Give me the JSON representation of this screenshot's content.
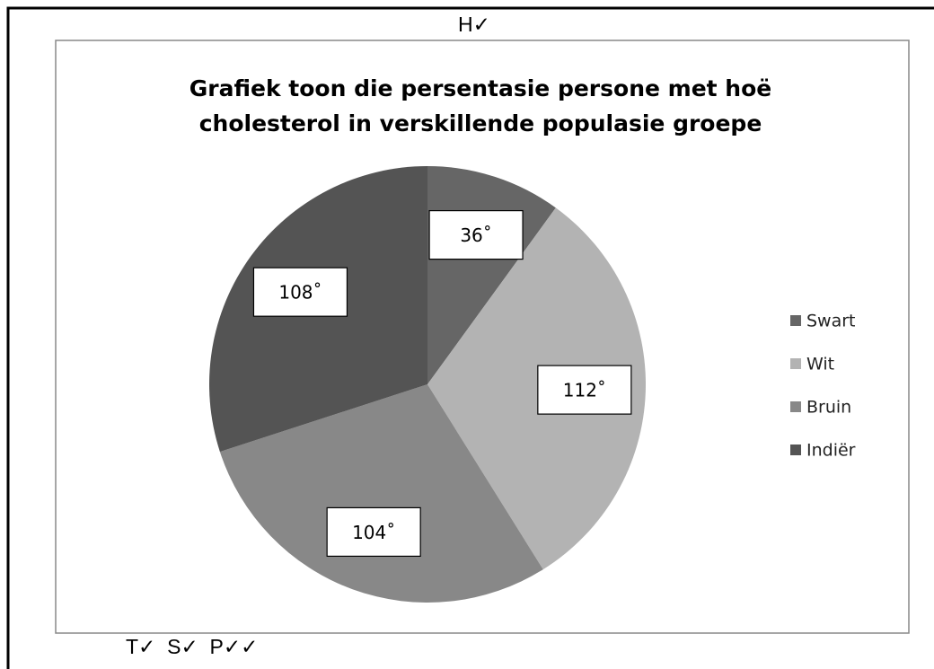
{
  "chart_data": {
    "type": "pie",
    "title": [
      "Grafiek toon die persentasie persone met hoë",
      "cholesterol in verskillende populasie groepe"
    ],
    "categories": [
      "Swart",
      "Wit",
      "Bruin",
      "Indiër"
    ],
    "values": [
      36,
      112,
      104,
      108
    ],
    "value_labels": [
      "36˚",
      "112˚",
      "104˚",
      "108˚"
    ],
    "colors": [
      "#666666",
      "#b3b3b3",
      "#888888",
      "#545454"
    ],
    "legend": "right",
    "annotations": [
      "H✓",
      "T✓  S✓  P✓✓"
    ]
  }
}
